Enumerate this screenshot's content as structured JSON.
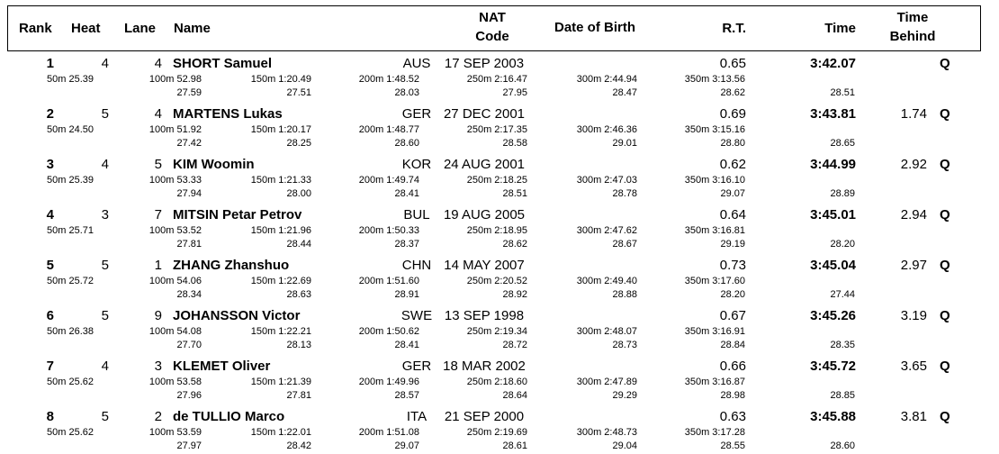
{
  "headers": {
    "rank": "Rank",
    "heat": "Heat",
    "lane": "Lane",
    "name": "Name",
    "nat_line1": "NAT",
    "nat_line2": "Code",
    "dob": "Date of Birth",
    "rt": "R.T.",
    "time": "Time",
    "behind_line1": "Time",
    "behind_line2": "Behind"
  },
  "results": [
    {
      "rank": "1",
      "heat": "4",
      "lane": "4",
      "name": "SHORT Samuel",
      "nat": "AUS",
      "dob": "17 SEP 2003",
      "rt": "0.65",
      "time": "3:42.07",
      "behind": "",
      "q": "Q",
      "s50": "50m 25.39",
      "s100": "100m 52.98",
      "s150": "150m 1:20.49",
      "s200": "200m 1:48.52",
      "s250": "250m 2:16.47",
      "s300": "300m 2:44.94",
      "s350": "350m 3:13.56",
      "l100": "27.59",
      "l150": "27.51",
      "l200": "28.03",
      "l250": "27.95",
      "l300": "28.47",
      "l350": "28.62",
      "l400": "28.51"
    },
    {
      "rank": "2",
      "heat": "5",
      "lane": "4",
      "name": "MARTENS Lukas",
      "nat": "GER",
      "dob": "27 DEC 2001",
      "rt": "0.69",
      "time": "3:43.81",
      "behind": "1.74",
      "q": "Q",
      "s50": "50m 24.50",
      "s100": "100m 51.92",
      "s150": "150m 1:20.17",
      "s200": "200m 1:48.77",
      "s250": "250m 2:17.35",
      "s300": "300m 2:46.36",
      "s350": "350m 3:15.16",
      "l100": "27.42",
      "l150": "28.25",
      "l200": "28.60",
      "l250": "28.58",
      "l300": "29.01",
      "l350": "28.80",
      "l400": "28.65"
    },
    {
      "rank": "3",
      "heat": "4",
      "lane": "5",
      "name": "KIM Woomin",
      "nat": "KOR",
      "dob": "24 AUG 2001",
      "rt": "0.62",
      "time": "3:44.99",
      "behind": "2.92",
      "q": "Q",
      "s50": "50m 25.39",
      "s100": "100m 53.33",
      "s150": "150m 1:21.33",
      "s200": "200m 1:49.74",
      "s250": "250m 2:18.25",
      "s300": "300m 2:47.03",
      "s350": "350m 3:16.10",
      "l100": "27.94",
      "l150": "28.00",
      "l200": "28.41",
      "l250": "28.51",
      "l300": "28.78",
      "l350": "29.07",
      "l400": "28.89"
    },
    {
      "rank": "4",
      "heat": "3",
      "lane": "7",
      "name": "MITSIN Petar Petrov",
      "nat": "BUL",
      "dob": "19 AUG 2005",
      "rt": "0.64",
      "time": "3:45.01",
      "behind": "2.94",
      "q": "Q",
      "s50": "50m 25.71",
      "s100": "100m 53.52",
      "s150": "150m 1:21.96",
      "s200": "200m 1:50.33",
      "s250": "250m 2:18.95",
      "s300": "300m 2:47.62",
      "s350": "350m 3:16.81",
      "l100": "27.81",
      "l150": "28.44",
      "l200": "28.37",
      "l250": "28.62",
      "l300": "28.67",
      "l350": "29.19",
      "l400": "28.20"
    },
    {
      "rank": "5",
      "heat": "5",
      "lane": "1",
      "name": "ZHANG Zhanshuo",
      "nat": "CHN",
      "dob": "14 MAY 2007",
      "rt": "0.73",
      "time": "3:45.04",
      "behind": "2.97",
      "q": "Q",
      "s50": "50m 25.72",
      "s100": "100m 54.06",
      "s150": "150m 1:22.69",
      "s200": "200m 1:51.60",
      "s250": "250m 2:20.52",
      "s300": "300m 2:49.40",
      "s350": "350m 3:17.60",
      "l100": "28.34",
      "l150": "28.63",
      "l200": "28.91",
      "l250": "28.92",
      "l300": "28.88",
      "l350": "28.20",
      "l400": "27.44"
    },
    {
      "rank": "6",
      "heat": "5",
      "lane": "9",
      "name": "JOHANSSON Victor",
      "nat": "SWE",
      "dob": "13 SEP 1998",
      "rt": "0.67",
      "time": "3:45.26",
      "behind": "3.19",
      "q": "Q",
      "s50": "50m 26.38",
      "s100": "100m 54.08",
      "s150": "150m 1:22.21",
      "s200": "200m 1:50.62",
      "s250": "250m 2:19.34",
      "s300": "300m 2:48.07",
      "s350": "350m 3:16.91",
      "l100": "27.70",
      "l150": "28.13",
      "l200": "28.41",
      "l250": "28.72",
      "l300": "28.73",
      "l350": "28.84",
      "l400": "28.35"
    },
    {
      "rank": "7",
      "heat": "4",
      "lane": "3",
      "name": "KLEMET Oliver",
      "nat": "GER",
      "dob": "18 MAR 2002",
      "rt": "0.66",
      "time": "3:45.72",
      "behind": "3.65",
      "q": "Q",
      "s50": "50m 25.62",
      "s100": "100m 53.58",
      "s150": "150m 1:21.39",
      "s200": "200m 1:49.96",
      "s250": "250m 2:18.60",
      "s300": "300m 2:47.89",
      "s350": "350m 3:16.87",
      "l100": "27.96",
      "l150": "27.81",
      "l200": "28.57",
      "l250": "28.64",
      "l300": "29.29",
      "l350": "28.98",
      "l400": "28.85"
    },
    {
      "rank": "8",
      "heat": "5",
      "lane": "2",
      "name": "de TULLIO Marco",
      "nat": "ITA",
      "dob": "21 SEP 2000",
      "rt": "0.63",
      "time": "3:45.88",
      "behind": "3.81",
      "q": "Q",
      "s50": "50m 25.62",
      "s100": "100m 53.59",
      "s150": "150m 1:22.01",
      "s200": "200m 1:51.08",
      "s250": "250m 2:19.69",
      "s300": "300m 2:48.73",
      "s350": "350m 3:17.28",
      "l100": "27.97",
      "l150": "28.42",
      "l200": "29.07",
      "l250": "28.61",
      "l300": "29.04",
      "l350": "28.55",
      "l400": "28.60"
    }
  ]
}
